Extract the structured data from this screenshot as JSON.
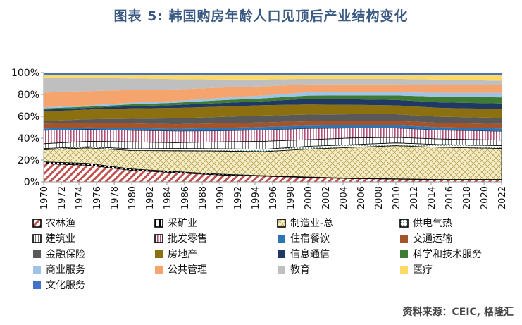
{
  "title": "图表 5:  韩国购房年龄人口见顶后产业结构变化",
  "source": "资料来源：CEIC, 格隆汇",
  "chart_data": {
    "type": "area",
    "stacked": true,
    "xlabel": "",
    "ylabel": "",
    "ylim": [
      0,
      100
    ],
    "y_ticks": [
      "0%",
      "20%",
      "40%",
      "60%",
      "80%",
      "100%"
    ],
    "x_ticks": [
      "1970",
      "1972",
      "1974",
      "1976",
      "1978",
      "1980",
      "1982",
      "1984",
      "1986",
      "1988",
      "1990",
      "1992",
      "1994",
      "1996",
      "1998",
      "2000",
      "2002",
      "2004",
      "2006",
      "2008",
      "2010",
      "2012",
      "2014",
      "2016",
      "2018",
      "2020",
      "2022"
    ],
    "x_years": [
      1970,
      1975,
      1980,
      1985,
      1990,
      1995,
      2000,
      2005,
      2010,
      2015,
      2022
    ],
    "legend_position": "bottom",
    "series": [
      {
        "name": "农林渔",
        "color": "#c0504d",
        "pattern": "hatch",
        "values": [
          15,
          14,
          10,
          8,
          6,
          5,
          4,
          3,
          2.5,
          2,
          2
        ]
      },
      {
        "name": "采矿业",
        "color": "#000000",
        "pattern": "dash",
        "values": [
          1.5,
          1.5,
          1.2,
          1,
          0.8,
          0.5,
          0.4,
          0.3,
          0.3,
          0.2,
          0.2
        ]
      },
      {
        "name": "制造业-总",
        "color": "#e8dca4",
        "pattern": "cross",
        "values": [
          10,
          13,
          16,
          18,
          20,
          21,
          25,
          28,
          30,
          29,
          28
        ]
      },
      {
        "name": "供电气热",
        "color": "#dfeee6",
        "pattern": "dots",
        "values": [
          1,
          1,
          1.5,
          2,
          2,
          2,
          2.5,
          2.5,
          2.5,
          2.5,
          2.5
        ]
      },
      {
        "name": "建筑业",
        "color": "#e6e6e6",
        "pattern": "vlines",
        "values": [
          4,
          4.5,
          6,
          5,
          6,
          7,
          6,
          6,
          5,
          5,
          5
        ]
      },
      {
        "name": "批发零售",
        "color": "#ede0ea",
        "pattern": "vlines-red",
        "values": [
          11,
          10,
          10,
          10,
          9.5,
          10,
          10,
          9,
          8.5,
          8,
          8
        ]
      },
      {
        "name": "住宿餐饮",
        "color": "#2e75b6",
        "pattern": "solid",
        "values": [
          1.5,
          1.5,
          2,
          2,
          2.5,
          2.5,
          2.5,
          2.5,
          2.5,
          2.5,
          2.5
        ]
      },
      {
        "name": "交通运输",
        "color": "#a5532a",
        "pattern": "solid",
        "values": [
          4,
          4,
          4,
          4,
          4,
          4,
          4,
          4,
          4,
          4,
          4
        ]
      },
      {
        "name": "金融保险",
        "color": "#595959",
        "pattern": "solid",
        "values": [
          2,
          3,
          4,
          5,
          5.5,
          6,
          6,
          6,
          6,
          5.5,
          5.5
        ]
      },
      {
        "name": "房地产",
        "color": "#8c7010",
        "pattern": "solid",
        "values": [
          8,
          8,
          9,
          9,
          9,
          9,
          9,
          8.5,
          8,
          8,
          8
        ]
      },
      {
        "name": "信息通信",
        "color": "#203864",
        "pattern": "solid",
        "values": [
          1.5,
          1.5,
          2,
          2.5,
          3,
          3.5,
          5,
          5,
          5,
          5,
          5
        ]
      },
      {
        "name": "科学和技术服务",
        "color": "#3e7c34",
        "pattern": "solid",
        "values": [
          1,
          1,
          1.5,
          2,
          2.5,
          2.5,
          3,
          3.5,
          4,
          5,
          5.5
        ]
      },
      {
        "name": "商业服务",
        "color": "#9dc3e6",
        "pattern": "solid",
        "values": [
          1,
          1,
          1.5,
          1.5,
          2,
          2.5,
          3,
          3,
          3,
          3.5,
          4
        ]
      },
      {
        "name": "公共管理",
        "color": "#f4a46c",
        "pattern": "solid",
        "values": [
          12,
          12,
          11,
          10,
          9,
          8,
          7,
          7,
          7,
          7,
          7
        ]
      },
      {
        "name": "教育",
        "color": "#bfbfbf",
        "pattern": "solid",
        "values": [
          12.5,
          11,
          10,
          9,
          7,
          6,
          5,
          5,
          5,
          5,
          4
        ]
      },
      {
        "name": "医疗",
        "color": "#ffd966",
        "pattern": "solid",
        "values": [
          2,
          2.5,
          3,
          3.6,
          4,
          4,
          3.6,
          3.7,
          3.7,
          4.3,
          5.3
        ]
      },
      {
        "name": "文化服务",
        "color": "#4472c4",
        "pattern": "solid",
        "values": [
          2,
          2,
          2,
          2,
          2,
          2,
          2,
          2,
          2,
          2,
          2
        ]
      }
    ]
  }
}
